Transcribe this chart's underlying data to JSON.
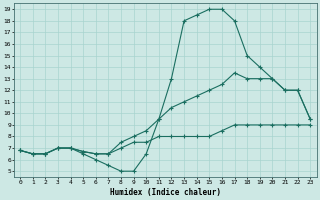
{
  "xlabel": "Humidex (Indice chaleur)",
  "bg_color": "#cde8e4",
  "grid_color": "#a8d4cf",
  "line_color": "#1a6e60",
  "xlim": [
    -0.5,
    23.5
  ],
  "ylim": [
    4.5,
    19.5
  ],
  "xticks": [
    0,
    1,
    2,
    3,
    4,
    5,
    6,
    7,
    8,
    9,
    10,
    11,
    12,
    13,
    14,
    15,
    16,
    17,
    18,
    19,
    20,
    21,
    22,
    23
  ],
  "yticks": [
    5,
    6,
    7,
    8,
    9,
    10,
    11,
    12,
    13,
    14,
    15,
    16,
    17,
    18,
    19
  ],
  "series": [
    {
      "x": [
        0,
        1,
        2,
        3,
        4,
        5,
        6,
        7,
        8,
        9,
        10,
        11,
        12,
        13,
        14,
        15,
        16,
        17,
        18,
        19,
        20,
        21,
        22,
        23
      ],
      "y": [
        6.8,
        6.5,
        6.5,
        7.0,
        7.0,
        6.5,
        6.0,
        5.5,
        5.0,
        5.0,
        6.5,
        9.5,
        13.0,
        18.0,
        18.5,
        19.0,
        19.0,
        18.0,
        15.0,
        14.0,
        13.0,
        12.0,
        12.0,
        9.5
      ]
    },
    {
      "x": [
        0,
        1,
        2,
        3,
        4,
        5,
        6,
        7,
        8,
        9,
        10,
        11,
        12,
        13,
        14,
        15,
        16,
        17,
        18,
        19,
        20,
        21,
        22,
        23
      ],
      "y": [
        6.8,
        6.5,
        6.5,
        7.0,
        7.0,
        6.7,
        6.5,
        6.5,
        7.5,
        8.0,
        8.5,
        9.5,
        10.5,
        11.0,
        11.5,
        12.0,
        12.5,
        13.5,
        13.0,
        13.0,
        13.0,
        12.0,
        12.0,
        9.5
      ]
    },
    {
      "x": [
        0,
        1,
        2,
        3,
        4,
        5,
        6,
        7,
        8,
        9,
        10,
        11,
        12,
        13,
        14,
        15,
        16,
        17,
        18,
        19,
        20,
        21,
        22,
        23
      ],
      "y": [
        6.8,
        6.5,
        6.5,
        7.0,
        7.0,
        6.7,
        6.5,
        6.5,
        7.0,
        7.5,
        7.5,
        8.0,
        8.0,
        8.0,
        8.0,
        8.0,
        8.5,
        9.0,
        9.0,
        9.0,
        9.0,
        9.0,
        9.0,
        9.0
      ]
    }
  ]
}
